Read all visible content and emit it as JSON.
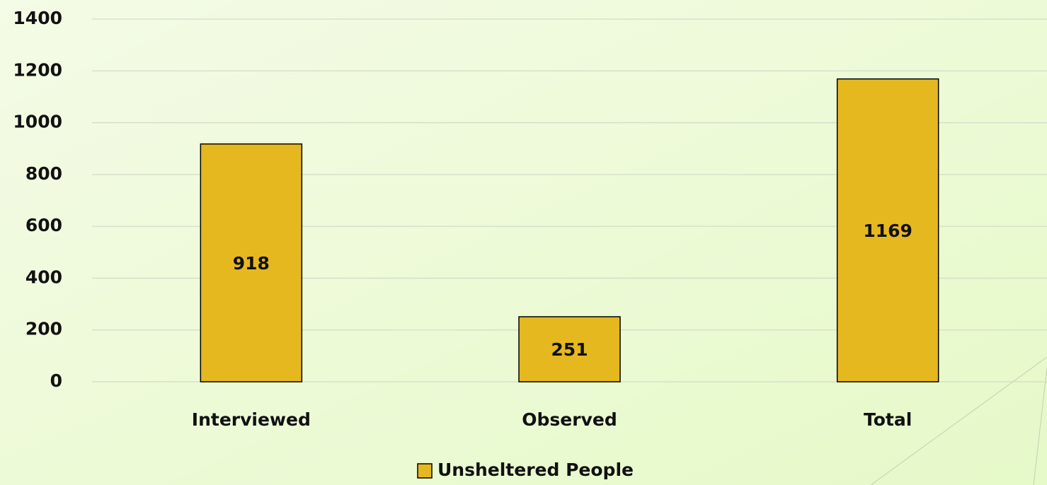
{
  "chart_data": {
    "type": "bar",
    "categories": [
      "Interviewed",
      "Observed",
      "Total"
    ],
    "series": [
      {
        "name": "Unsheltered People",
        "color": "#e6b820",
        "values": [
          918,
          251,
          1169
        ]
      }
    ],
    "ylim": [
      0,
      1400
    ],
    "yticks": [
      0,
      200,
      400,
      600,
      800,
      1000,
      1200,
      1400
    ],
    "grid": true,
    "legend": "bottom",
    "data_labels": true
  }
}
